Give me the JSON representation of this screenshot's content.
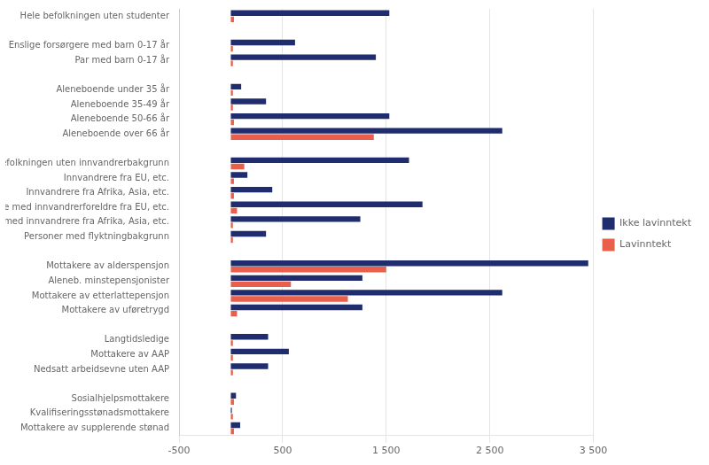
{
  "chart_data": {
    "type": "bar",
    "orientation": "horizontal",
    "categories": [
      "Hele befolkningen uten studenter",
      null,
      "Enslige forsørgere med barn 0-17 år",
      "Par med barn 0-17 år",
      null,
      "Aleneboende under 35 år",
      "Aleneboende 35-49 år",
      "Aleneboende 50-66 år",
      "Aleneboende over 66 år",
      null,
      "Befolkningen uten innvandrerbakgrunn",
      "Innvandrere fra EU, etc.",
      "Innvandrere fra Afrika, Asia, etc.",
      "Norskfødte med innvandrerforeldre fra EU, etc.",
      "Norskfødte med innvandrere fra Afrika, Asia, etc.",
      "Personer med flyktningbakgrunn",
      null,
      "Mottakere av alderspensjon",
      "Aleneb. minstepensjonister",
      "Mottakere av etterlattepensjon",
      "Mottakere av uføretrygd",
      null,
      "Langtidsledige",
      "Mottakere av AAP",
      "Nedsatt arbeidsevne uten AAP",
      null,
      "Sosialhjelpsmottakere",
      "Kvalifiseringsstønadsmottakere",
      "Mottakere av supplerende stønad"
    ],
    "series": [
      {
        "name": "Ikke lavinntekt",
        "color": "#1f2d6e",
        "values": [
          1530,
          null,
          620,
          1400,
          null,
          100,
          340,
          1530,
          2620,
          null,
          1720,
          160,
          400,
          1850,
          1250,
          340,
          null,
          3450,
          1270,
          2620,
          1270,
          null,
          360,
          560,
          360,
          null,
          50,
          10,
          90
        ]
      },
      {
        "name": "Lavinntekt",
        "color": "#e8604c",
        "values": [
          30,
          null,
          20,
          20,
          null,
          20,
          20,
          30,
          1380,
          null,
          130,
          30,
          30,
          60,
          20,
          20,
          null,
          1500,
          580,
          1130,
          60,
          null,
          20,
          20,
          20,
          null,
          30,
          20,
          30
        ]
      }
    ],
    "xlim": [
      -500,
      3500
    ],
    "xticks": [
      -500,
      500,
      {
        "value": 1500,
        "label": "1 500"
      },
      {
        "value": 2500,
        "label": "2 500"
      },
      {
        "value": 3500,
        "label": "3 500"
      }
    ],
    "grid": true,
    "legend": "right"
  }
}
